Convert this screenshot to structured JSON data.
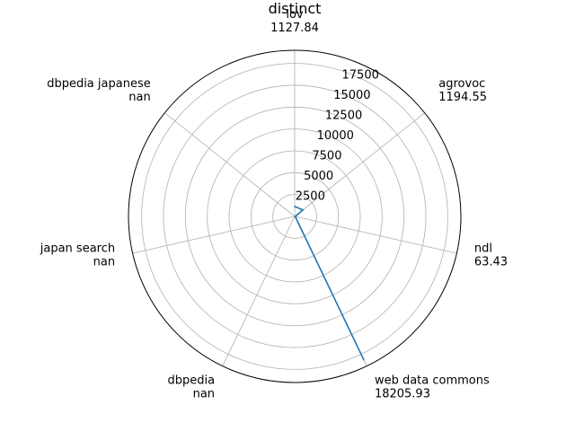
{
  "chart_data": {
    "type": "radar",
    "title": "distinct",
    "categories": [
      "lov",
      "agrovoc",
      "ndl",
      "web data commons",
      "dbpedia",
      "japan search",
      "dbpedia japanese"
    ],
    "value_labels": [
      "1127.84",
      "1194.55",
      "63.43",
      "18205.93",
      "nan",
      "nan",
      "nan"
    ],
    "series": [
      {
        "values": [
          1127.84,
          1194.55,
          63.43,
          18205.93,
          null,
          null,
          null
        ],
        "color": "#1f77b4"
      }
    ],
    "rlim": [
      0,
      19000
    ],
    "radial_ticks": [
      2500,
      5000,
      7500,
      10000,
      12500,
      15000,
      17500
    ],
    "grid": true,
    "legend": "none"
  }
}
